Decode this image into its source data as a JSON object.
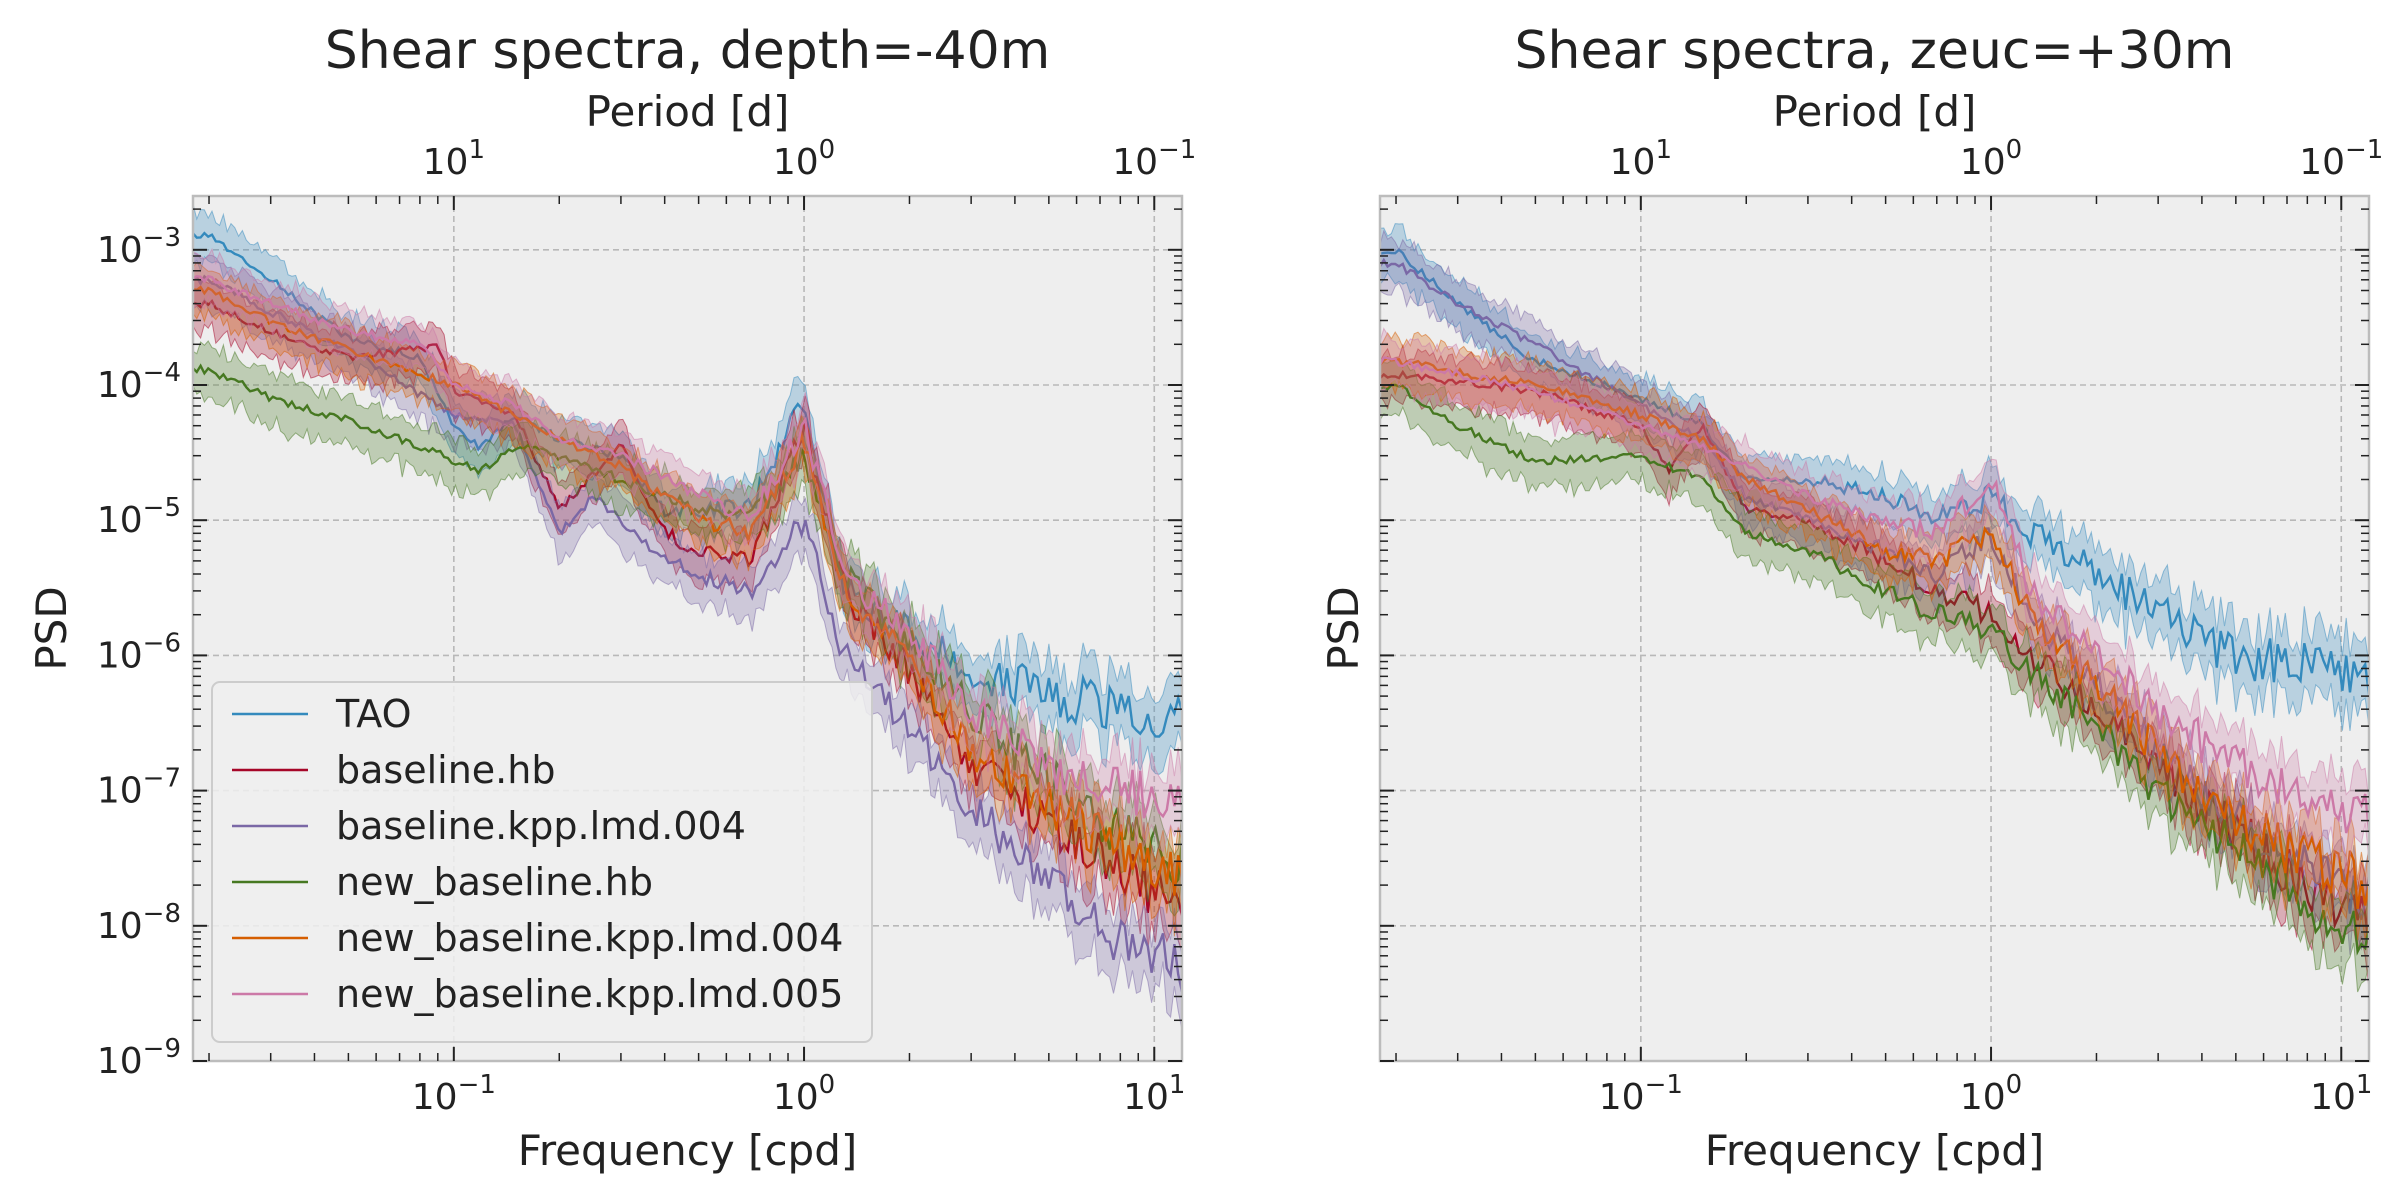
{
  "chart_data": [
    {
      "type": "line",
      "title": "Shear spectra, depth=-40m",
      "xlabel": "Frequency [cpd]",
      "ylabel": "PSD",
      "secondary_xlabel": "Period [d]",
      "xscale": "log",
      "yscale": "log",
      "xlim": [
        0.018,
        12
      ],
      "ylim": [
        1e-09,
        0.0025
      ],
      "x_ticks": [
        "10^-1",
        "10^0",
        "10^1"
      ],
      "top_ticks": [
        "10^1",
        "10^0",
        "10^-1"
      ],
      "y_ticks": [
        "10^-9",
        "10^-8",
        "10^-7",
        "10^-6",
        "10^-5",
        "10^-4",
        "10^-3"
      ],
      "grid": true,
      "legend": "lower-left",
      "series": [
        {
          "name": "TAO",
          "color": "#348ABD",
          "points": [
            [
              0.02,
              0.0013
            ],
            [
              0.03,
              0.0006
            ],
            [
              0.05,
              0.00022
            ],
            [
              0.08,
              0.00016
            ],
            [
              0.1,
              5e-05
            ],
            [
              0.12,
              3.4e-05
            ],
            [
              0.15,
              6e-05
            ],
            [
              0.2,
              4e-05
            ],
            [
              0.3,
              3e-05
            ],
            [
              0.4,
              1.2e-05
            ],
            [
              0.5,
              1.2e-05
            ],
            [
              0.7,
              1.2e-05
            ],
            [
              1.0,
              8e-05
            ],
            [
              1.3,
              3e-06
            ],
            [
              2,
              1.5e-06
            ],
            [
              3,
              8e-07
            ],
            [
              5,
              5e-07
            ],
            [
              8,
              4e-07
            ],
            [
              12,
              4e-07
            ]
          ]
        },
        {
          "name": "baseline.hb",
          "color": "#A60628",
          "points": [
            [
              0.02,
              0.0004
            ],
            [
              0.03,
              0.00025
            ],
            [
              0.05,
              0.00016
            ],
            [
              0.09,
              0.00019
            ],
            [
              0.1,
              9e-05
            ],
            [
              0.15,
              6e-05
            ],
            [
              0.2,
              1.2e-05
            ],
            [
              0.3,
              3.5e-05
            ],
            [
              0.4,
              8e-06
            ],
            [
              0.5,
              6e-06
            ],
            [
              0.7,
              5e-06
            ],
            [
              1.0,
              5e-05
            ],
            [
              1.3,
              3e-06
            ],
            [
              2,
              8e-07
            ],
            [
              3,
              1.5e-07
            ],
            [
              5,
              6e-08
            ],
            [
              8,
              2.5e-08
            ],
            [
              12,
              1.5e-08
            ]
          ]
        },
        {
          "name": "baseline.kpp.lmd.004",
          "color": "#7A68A6",
          "points": [
            [
              0.02,
              0.0006
            ],
            [
              0.03,
              0.00035
            ],
            [
              0.05,
              0.00018
            ],
            [
              0.1,
              6e-05
            ],
            [
              0.15,
              5e-05
            ],
            [
              0.2,
              8e-06
            ],
            [
              0.25,
              1.5e-05
            ],
            [
              0.3,
              1e-05
            ],
            [
              0.4,
              5e-06
            ],
            [
              0.5,
              4e-06
            ],
            [
              0.7,
              3e-06
            ],
            [
              1.0,
              1e-05
            ],
            [
              1.3,
              1e-06
            ],
            [
              2,
              3e-07
            ],
            [
              3,
              8e-08
            ],
            [
              5,
              2e-08
            ],
            [
              8,
              8e-09
            ],
            [
              12,
              5e-09
            ]
          ]
        },
        {
          "name": "new_baseline.hb",
          "color": "#467821",
          "points": [
            [
              0.02,
              0.00013
            ],
            [
              0.03,
              8e-05
            ],
            [
              0.05,
              5.5e-05
            ],
            [
              0.08,
              3.5e-05
            ],
            [
              0.12,
              2.3e-05
            ],
            [
              0.15,
              3.5e-05
            ],
            [
              0.2,
              3e-05
            ],
            [
              0.3,
              2e-05
            ],
            [
              0.5,
              1.2e-05
            ],
            [
              0.7,
              1e-05
            ],
            [
              1.0,
              3e-05
            ],
            [
              1.3,
              4e-06
            ],
            [
              2,
              1.2e-06
            ],
            [
              3,
              4e-07
            ],
            [
              5,
              1.2e-07
            ],
            [
              8,
              5e-08
            ],
            [
              12,
              3e-08
            ]
          ]
        },
        {
          "name": "new_baseline.kpp.lmd.004",
          "color": "#D55E00",
          "points": [
            [
              0.02,
              0.0005
            ],
            [
              0.03,
              0.0003
            ],
            [
              0.05,
              0.00018
            ],
            [
              0.1,
              0.0001
            ],
            [
              0.15,
              6e-05
            ],
            [
              0.2,
              4e-05
            ],
            [
              0.3,
              2.5e-05
            ],
            [
              0.5,
              1e-05
            ],
            [
              0.7,
              8e-06
            ],
            [
              1.0,
              4e-05
            ],
            [
              1.3,
              3e-06
            ],
            [
              2,
              1e-06
            ],
            [
              3,
              2e-07
            ],
            [
              5,
              8e-08
            ],
            [
              8,
              4e-08
            ],
            [
              12,
              2e-08
            ]
          ]
        },
        {
          "name": "new_baseline.kpp.lmd.005",
          "color": "#CC79A7",
          "points": [
            [
              0.02,
              0.0006
            ],
            [
              0.03,
              0.0004
            ],
            [
              0.05,
              0.00025
            ],
            [
              0.08,
              0.0002
            ],
            [
              0.1,
              0.0001
            ],
            [
              0.15,
              7e-05
            ],
            [
              0.2,
              4e-05
            ],
            [
              0.3,
              3e-05
            ],
            [
              0.5,
              1.5e-05
            ],
            [
              0.7,
              1e-05
            ],
            [
              1.0,
              5e-05
            ],
            [
              1.3,
              4e-06
            ],
            [
              2,
              1.5e-06
            ],
            [
              3,
              4e-07
            ],
            [
              5,
              1.5e-07
            ],
            [
              8,
              1e-07
            ],
            [
              12,
              8e-08
            ]
          ]
        }
      ]
    },
    {
      "type": "line",
      "title": "Shear spectra, zeuc=+30m",
      "xlabel": "Frequency [cpd]",
      "ylabel": "PSD",
      "secondary_xlabel": "Period [d]",
      "xscale": "log",
      "yscale": "log",
      "xlim": [
        0.018,
        12
      ],
      "ylim": [
        1e-09,
        0.0025
      ],
      "x_ticks": [
        "10^-1",
        "10^0",
        "10^1"
      ],
      "top_ticks": [
        "10^1",
        "10^0",
        "10^-1"
      ],
      "y_ticks": [],
      "grid": true,
      "legend": "none",
      "series": [
        {
          "name": "TAO",
          "color": "#348ABD",
          "points": [
            [
              0.02,
              0.001
            ],
            [
              0.03,
              0.0004
            ],
            [
              0.05,
              0.00015
            ],
            [
              0.1,
              8e-05
            ],
            [
              0.15,
              5e-05
            ],
            [
              0.2,
              2e-05
            ],
            [
              0.3,
              2e-05
            ],
            [
              0.5,
              1.5e-05
            ],
            [
              0.7,
              1e-05
            ],
            [
              1.0,
              1.5e-05
            ],
            [
              1.3,
              8e-06
            ],
            [
              2,
              4e-06
            ],
            [
              3,
              2e-06
            ],
            [
              5,
              1e-06
            ],
            [
              8,
              8e-07
            ],
            [
              12,
              6e-07
            ]
          ]
        },
        {
          "name": "baseline.hb",
          "color": "#A60628",
          "points": [
            [
              0.02,
              0.00012
            ],
            [
              0.05,
              9e-05
            ],
            [
              0.1,
              5e-05
            ],
            [
              0.12,
              2.3e-05
            ],
            [
              0.15,
              5e-05
            ],
            [
              0.2,
              1.2e-05
            ],
            [
              0.3,
              1e-05
            ],
            [
              0.5,
              5e-06
            ],
            [
              0.7,
              3e-06
            ],
            [
              1.0,
              2e-06
            ],
            [
              1.3,
              1e-06
            ],
            [
              2,
              4e-07
            ],
            [
              3,
              1.5e-07
            ],
            [
              5,
              5e-08
            ],
            [
              8,
              2e-08
            ],
            [
              12,
              1e-08
            ]
          ]
        },
        {
          "name": "baseline.kpp.lmd.004",
          "color": "#7A68A6",
          "points": [
            [
              0.02,
              0.0008
            ],
            [
              0.03,
              0.0004
            ],
            [
              0.05,
              0.0002
            ],
            [
              0.1,
              7e-05
            ],
            [
              0.15,
              4e-05
            ],
            [
              0.2,
              1.5e-05
            ],
            [
              0.3,
              1e-05
            ],
            [
              0.5,
              6e-06
            ],
            [
              0.7,
              4e-06
            ],
            [
              1.0,
              8e-06
            ],
            [
              1.3,
              2e-06
            ],
            [
              2,
              6e-07
            ],
            [
              3,
              2e-07
            ],
            [
              5,
              6e-08
            ],
            [
              8,
              2.5e-08
            ],
            [
              12,
              1.5e-08
            ]
          ]
        },
        {
          "name": "new_baseline.hb",
          "color": "#467821",
          "points": [
            [
              0.02,
              0.0001
            ],
            [
              0.03,
              5e-05
            ],
            [
              0.05,
              2.7e-05
            ],
            [
              0.1,
              3e-05
            ],
            [
              0.15,
              2e-05
            ],
            [
              0.2,
              8e-06
            ],
            [
              0.3,
              6e-06
            ],
            [
              0.5,
              3e-06
            ],
            [
              0.7,
              2e-06
            ],
            [
              1.0,
              1.5e-06
            ],
            [
              1.3,
              8e-07
            ],
            [
              2,
              3e-07
            ],
            [
              3,
              1e-07
            ],
            [
              5,
              4e-08
            ],
            [
              8,
              1.5e-08
            ],
            [
              12,
              8e-09
            ]
          ]
        },
        {
          "name": "new_baseline.kpp.lmd.004",
          "color": "#D55E00",
          "points": [
            [
              0.02,
              0.00015
            ],
            [
              0.05,
              0.0001
            ],
            [
              0.1,
              6e-05
            ],
            [
              0.15,
              4e-05
            ],
            [
              0.2,
              2e-05
            ],
            [
              0.3,
              1.2e-05
            ],
            [
              0.5,
              6e-06
            ],
            [
              0.7,
              5e-06
            ],
            [
              1.0,
              8e-06
            ],
            [
              1.3,
              2e-06
            ],
            [
              2,
              6e-07
            ],
            [
              3,
              2e-07
            ],
            [
              5,
              6e-08
            ],
            [
              8,
              3e-08
            ],
            [
              12,
              2e-08
            ]
          ]
        },
        {
          "name": "new_baseline.kpp.lmd.005",
          "color": "#CC79A7",
          "points": [
            [
              0.02,
              0.00015
            ],
            [
              0.05,
              9e-05
            ],
            [
              0.1,
              5e-05
            ],
            [
              0.15,
              3.5e-05
            ],
            [
              0.2,
              2.5e-05
            ],
            [
              0.3,
              1.5e-05
            ],
            [
              0.5,
              1e-05
            ],
            [
              0.7,
              8e-06
            ],
            [
              1.0,
              2e-05
            ],
            [
              1.3,
              3e-06
            ],
            [
              2,
              1e-06
            ],
            [
              3,
              4e-07
            ],
            [
              5,
              1.5e-07
            ],
            [
              8,
              8e-08
            ],
            [
              12,
              6e-08
            ]
          ]
        }
      ]
    }
  ]
}
